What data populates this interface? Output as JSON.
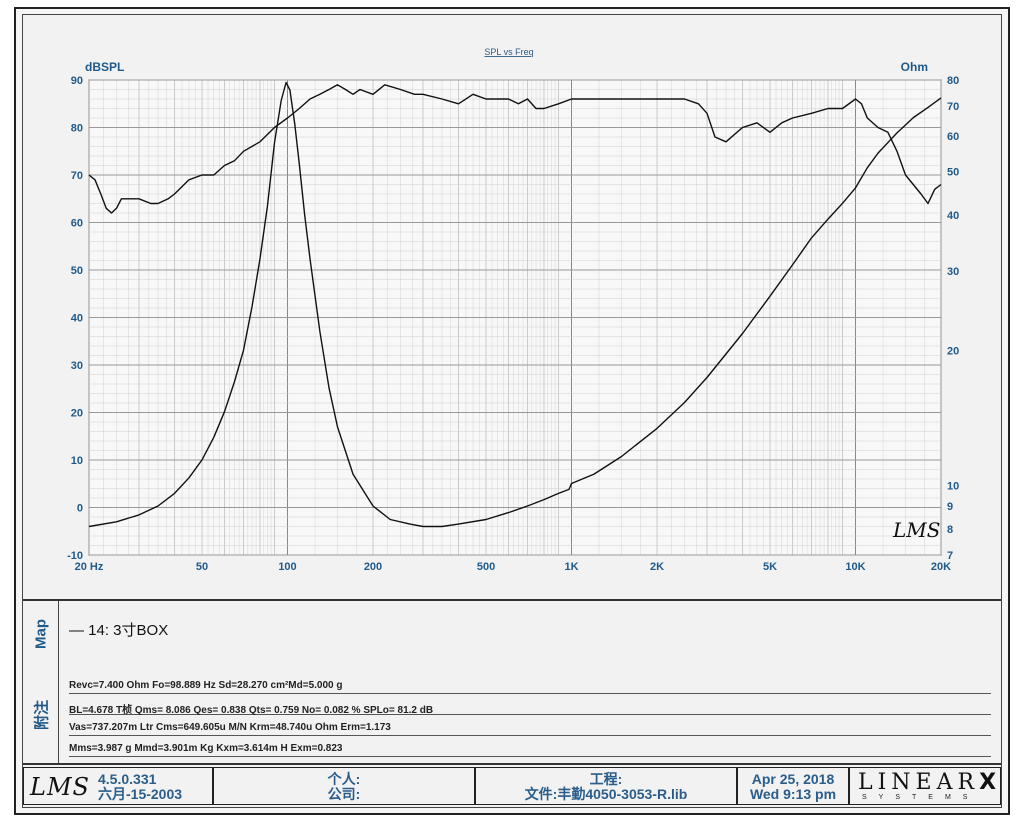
{
  "chart_data": {
    "type": "line",
    "title": "SPL vs Freq",
    "ylabel_left": "dBSPL",
    "ylabel_right": "Ohm",
    "x_scale": "log",
    "xlim": [
      20,
      20000
    ],
    "ylim_left": [
      -10,
      90
    ],
    "ylim_right": [
      7,
      80
    ],
    "y_scale_right": "log",
    "grid": true,
    "x_ticks": [
      {
        "v": 20,
        "label": "20 Hz"
      },
      {
        "v": 50,
        "label": "50"
      },
      {
        "v": 100,
        "label": "100"
      },
      {
        "v": 200,
        "label": "200"
      },
      {
        "v": 500,
        "label": "500"
      },
      {
        "v": 1000,
        "label": "1K"
      },
      {
        "v": 2000,
        "label": "2K"
      },
      {
        "v": 5000,
        "label": "5K"
      },
      {
        "v": 10000,
        "label": "10K"
      },
      {
        "v": 20000,
        "label": "20K"
      }
    ],
    "y_ticks_left": [
      "-10",
      "0",
      "10",
      "20",
      "30",
      "40",
      "50",
      "60",
      "70",
      "80",
      "90"
    ],
    "y_ticks_right": [
      {
        "v": 7,
        "label": "7"
      },
      {
        "v": 8,
        "label": "8"
      },
      {
        "v": 9,
        "label": "9"
      },
      {
        "v": 10,
        "label": "10"
      },
      {
        "v": 20,
        "label": "20"
      },
      {
        "v": 30,
        "label": "30"
      },
      {
        "v": 40,
        "label": "40"
      },
      {
        "v": 50,
        "label": "50"
      },
      {
        "v": 60,
        "label": "60"
      },
      {
        "v": 70,
        "label": "70"
      },
      {
        "v": 80,
        "label": "80"
      }
    ],
    "series": [
      {
        "axis": "left",
        "points": [
          [
            20,
            70
          ],
          [
            21,
            69
          ],
          [
            22,
            66
          ],
          [
            23,
            63
          ],
          [
            24,
            62
          ],
          [
            25,
            63
          ],
          [
            26,
            65
          ],
          [
            28,
            65
          ],
          [
            30,
            65
          ],
          [
            33,
            64
          ],
          [
            35,
            64
          ],
          [
            38,
            65
          ],
          [
            40,
            66
          ],
          [
            45,
            69
          ],
          [
            50,
            70
          ],
          [
            55,
            70
          ],
          [
            60,
            72
          ],
          [
            65,
            73
          ],
          [
            70,
            75
          ],
          [
            80,
            77
          ],
          [
            90,
            80
          ],
          [
            100,
            82
          ],
          [
            110,
            84
          ],
          [
            120,
            86
          ],
          [
            130,
            87
          ],
          [
            140,
            88
          ],
          [
            150,
            89
          ],
          [
            160,
            88
          ],
          [
            170,
            87
          ],
          [
            180,
            88
          ],
          [
            200,
            87
          ],
          [
            220,
            89
          ],
          [
            250,
            88
          ],
          [
            280,
            87
          ],
          [
            300,
            87
          ],
          [
            350,
            86
          ],
          [
            400,
            85
          ],
          [
            450,
            87
          ],
          [
            500,
            86
          ],
          [
            550,
            86
          ],
          [
            600,
            86
          ],
          [
            650,
            85
          ],
          [
            700,
            86
          ],
          [
            750,
            84
          ],
          [
            800,
            84
          ],
          [
            900,
            85
          ],
          [
            1000,
            86
          ],
          [
            1200,
            86
          ],
          [
            1500,
            86
          ],
          [
            1800,
            86
          ],
          [
            2000,
            86
          ],
          [
            2200,
            86
          ],
          [
            2500,
            86
          ],
          [
            2800,
            85
          ],
          [
            3000,
            83
          ],
          [
            3200,
            78
          ],
          [
            3500,
            77
          ],
          [
            4000,
            80
          ],
          [
            4500,
            81
          ],
          [
            5000,
            79
          ],
          [
            5500,
            81
          ],
          [
            6000,
            82
          ],
          [
            7000,
            83
          ],
          [
            8000,
            84
          ],
          [
            9000,
            84
          ],
          [
            10000,
            86
          ],
          [
            10500,
            85
          ],
          [
            11000,
            82
          ],
          [
            12000,
            80
          ],
          [
            13000,
            79
          ],
          [
            14000,
            75
          ],
          [
            15000,
            70
          ],
          [
            17000,
            66
          ],
          [
            18000,
            64
          ],
          [
            19000,
            67
          ],
          [
            20000,
            68
          ]
        ]
      },
      {
        "axis": "right",
        "points": [
          [
            20,
            8.1
          ],
          [
            25,
            8.3
          ],
          [
            30,
            8.6
          ],
          [
            35,
            9.0
          ],
          [
            40,
            9.6
          ],
          [
            45,
            10.4
          ],
          [
            50,
            11.4
          ],
          [
            55,
            12.8
          ],
          [
            60,
            14.6
          ],
          [
            65,
            17.0
          ],
          [
            70,
            20.0
          ],
          [
            75,
            25.0
          ],
          [
            80,
            32.0
          ],
          [
            85,
            42.0
          ],
          [
            90,
            58.0
          ],
          [
            95,
            72.0
          ],
          [
            98.9,
            79.0
          ],
          [
            102,
            76.0
          ],
          [
            106,
            64.0
          ],
          [
            110,
            52.0
          ],
          [
            115,
            40.0
          ],
          [
            120,
            32.0
          ],
          [
            130,
            22.0
          ],
          [
            140,
            16.5
          ],
          [
            150,
            13.5
          ],
          [
            170,
            10.6
          ],
          [
            200,
            9.0
          ],
          [
            230,
            8.4
          ],
          [
            270,
            8.2
          ],
          [
            300,
            8.1
          ],
          [
            350,
            8.1
          ],
          [
            400,
            8.2
          ],
          [
            500,
            8.4
          ],
          [
            600,
            8.7
          ],
          [
            700,
            9.0
          ],
          [
            800,
            9.3
          ],
          [
            900,
            9.6
          ],
          [
            980,
            9.8
          ],
          [
            1000,
            10.1
          ],
          [
            1200,
            10.6
          ],
          [
            1500,
            11.6
          ],
          [
            2000,
            13.4
          ],
          [
            2500,
            15.3
          ],
          [
            3000,
            17.4
          ],
          [
            4000,
            21.8
          ],
          [
            5000,
            26.4
          ],
          [
            6000,
            31.0
          ],
          [
            7000,
            35.6
          ],
          [
            8000,
            39.2
          ],
          [
            9000,
            42.5
          ],
          [
            10000,
            46.0
          ],
          [
            11000,
            51.0
          ],
          [
            12000,
            55.0
          ],
          [
            14000,
            61.0
          ],
          [
            16000,
            66.0
          ],
          [
            18000,
            69.5
          ],
          [
            20000,
            73.0
          ]
        ]
      }
    ]
  },
  "map": {
    "tag": "Map",
    "entry": "— 14: 3寸BOX"
  },
  "notes": {
    "tag": "附注",
    "lines": [
      "Revc=7.400 Ohm  Fo=98.889 Hz  Sd=28.270 cm²Md=5.000 g",
      "BL=4.678 T桢  Qms= 8.086  Qes= 0.838  Qts= 0.759  No= 0.082 %  SPLo= 81.2 dB",
      "Vas=737.207m Ltr  Cms=649.605u M/N  Krm=48.740u Ohm  Erm=1.173",
      "Mms=3.987 g  Mmd=3.901m Kg  Kxm=3.614m H  Exm=0.823"
    ]
  },
  "footer": {
    "logo": "LMS",
    "version": "4.5.0.331",
    "version_date": "六月-15-2003",
    "person_label": "个人:",
    "company_label": "公司:",
    "project_label": "工程:",
    "file_label": "文件:丰勤4050-3053-R.lib",
    "date": "Apr 25, 2018",
    "time": "Wed  9:13 pm",
    "brand": "LINEAR",
    "brand_x": "X",
    "brand_sub": "SYSTEMS"
  },
  "plot_watermark": "LMS"
}
